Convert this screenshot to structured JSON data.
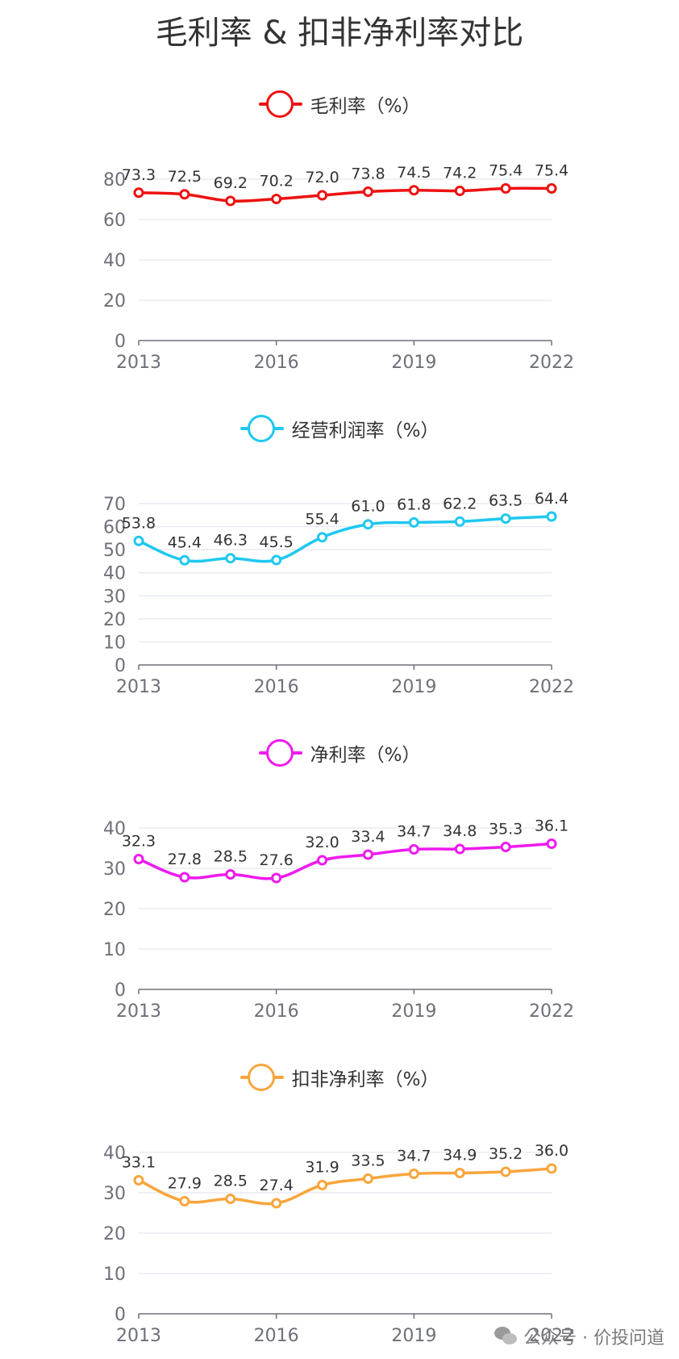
{
  "title": "毛利率 & 扣非净利率对比",
  "watermark": {
    "text": "公众号 · 价投问道",
    "icon": "wechat-icon"
  },
  "chart_data": [
    {
      "type": "line",
      "legend": "毛利率（%）",
      "color": "#ee1111",
      "x": [
        2013,
        2014,
        2015,
        2016,
        2017,
        2018,
        2019,
        2020,
        2021,
        2022
      ],
      "xticks": [
        "2013",
        "2016",
        "2019",
        "2022"
      ],
      "values": [
        73.3,
        72.5,
        69.2,
        70.2,
        72.0,
        73.8,
        74.5,
        74.2,
        75.4,
        75.4
      ],
      "labels": [
        "73.3",
        "72.5",
        "69.2",
        "70.2",
        "72.0",
        "73.8",
        "74.5",
        "74.2",
        "75.4",
        "75.4"
      ],
      "ylim": [
        0,
        80
      ],
      "yticks": [
        "0",
        "20",
        "40",
        "60",
        "80"
      ],
      "smooth": true,
      "grid": true
    },
    {
      "type": "line",
      "legend": "经营利润率（%）",
      "color": "#1ec8f0",
      "x": [
        2013,
        2014,
        2015,
        2016,
        2017,
        2018,
        2019,
        2020,
        2021,
        2022
      ],
      "xticks": [
        "2013",
        "2016",
        "2019",
        "2022"
      ],
      "values": [
        53.8,
        45.4,
        46.3,
        45.5,
        55.4,
        61.0,
        61.8,
        62.2,
        63.5,
        64.4
      ],
      "labels": [
        "53.8",
        "45.4",
        "46.3",
        "45.5",
        "55.4",
        "61.0",
        "61.8",
        "62.2",
        "63.5",
        "64.4"
      ],
      "ylim": [
        0,
        70
      ],
      "yticks": [
        "0",
        "10",
        "20",
        "30",
        "40",
        "50",
        "60",
        "70"
      ],
      "smooth": true,
      "grid": true
    },
    {
      "type": "line",
      "legend": "净利率（%）",
      "color": "#ee1aee",
      "x": [
        2013,
        2014,
        2015,
        2016,
        2017,
        2018,
        2019,
        2020,
        2021,
        2022
      ],
      "xticks": [
        "2013",
        "2016",
        "2019",
        "2022"
      ],
      "values": [
        32.3,
        27.8,
        28.5,
        27.6,
        32.0,
        33.4,
        34.7,
        34.8,
        35.3,
        36.1
      ],
      "labels": [
        "32.3",
        "27.8",
        "28.5",
        "27.6",
        "32.0",
        "33.4",
        "34.7",
        "34.8",
        "35.3",
        "36.1"
      ],
      "ylim": [
        0,
        40
      ],
      "yticks": [
        "0",
        "10",
        "20",
        "30",
        "40"
      ],
      "smooth": true,
      "grid": true
    },
    {
      "type": "line",
      "legend": "扣非净利率（%）",
      "color": "#f8a53c",
      "x": [
        2013,
        2014,
        2015,
        2016,
        2017,
        2018,
        2019,
        2020,
        2021,
        2022
      ],
      "xticks": [
        "2013",
        "2016",
        "2019",
        "2022"
      ],
      "values": [
        33.1,
        27.9,
        28.5,
        27.4,
        31.9,
        33.5,
        34.7,
        34.9,
        35.2,
        36.0
      ],
      "labels": [
        "33.1",
        "27.9",
        "28.5",
        "27.4",
        "31.9",
        "33.5",
        "34.7",
        "34.9",
        "35.2",
        "36.0"
      ],
      "ylim": [
        0,
        40
      ],
      "yticks": [
        "0",
        "10",
        "20",
        "30",
        "40"
      ],
      "smooth": true,
      "grid": true
    }
  ]
}
